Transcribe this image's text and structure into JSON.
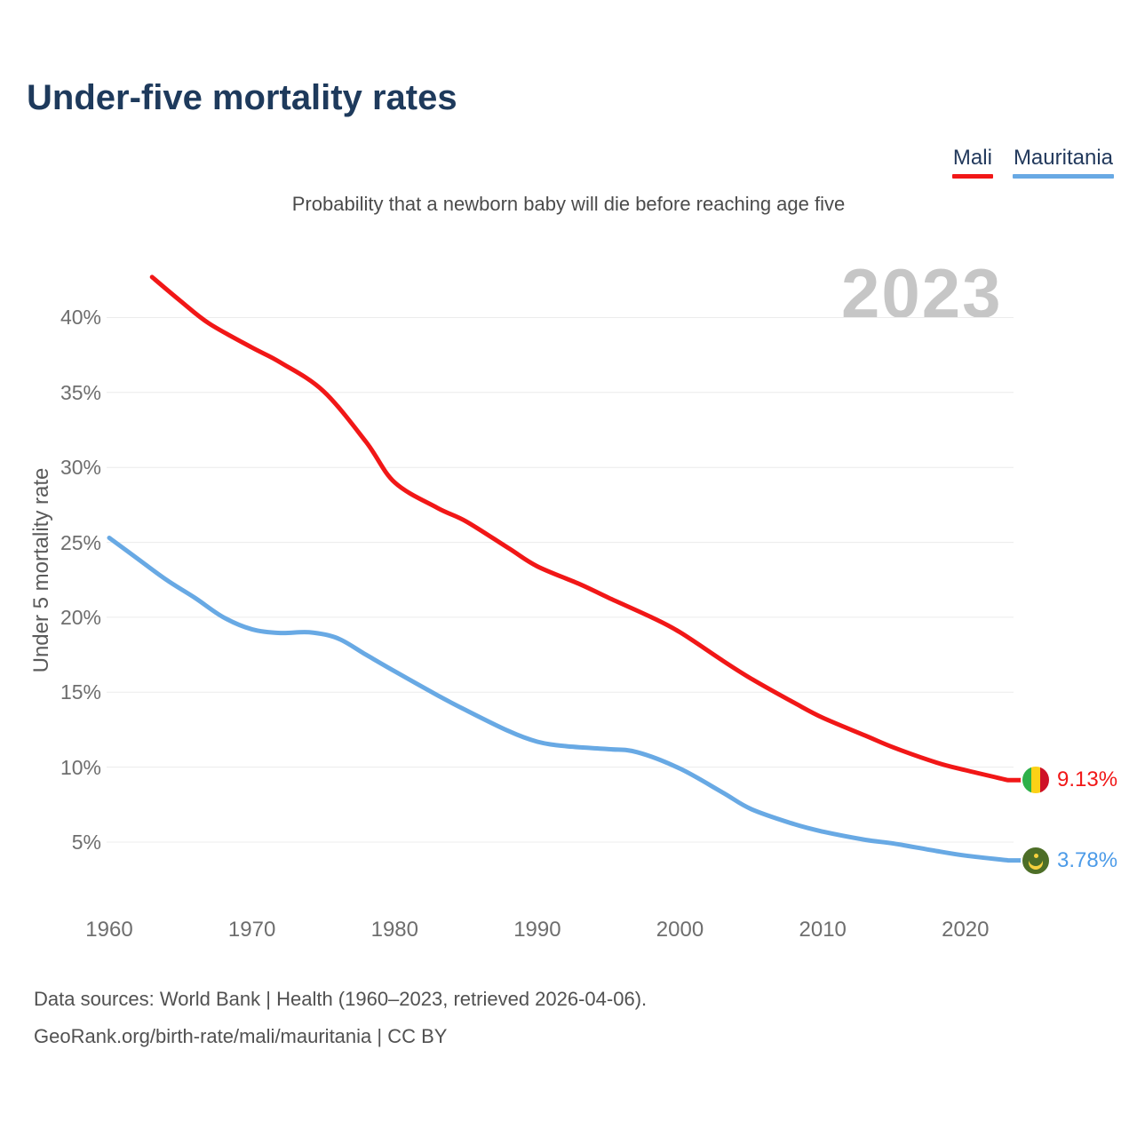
{
  "page": {
    "title": "Under-five mortality rates",
    "subtitle": "Probability that a newborn baby will die before reaching age five",
    "watermark": "2023",
    "footer_line1": "Data sources: World Bank | Health (1960–2023, retrieved 2026-04-06).",
    "footer_line2": "GeoRank.org/birth-rate/mali/mauritania | CC BY"
  },
  "legend": {
    "items": [
      {
        "label": "Mali",
        "color": "#f11717"
      },
      {
        "label": "Mauritania",
        "color": "#68a9e4"
      }
    ]
  },
  "chart_data": {
    "type": "line",
    "title": "Under-five mortality rates",
    "subtitle": "Probability that a newborn baby will die before reaching age five",
    "ylabel": "Under 5 mortality rate",
    "xlabel": "",
    "x_ticks": [
      1960,
      1970,
      1980,
      1990,
      2000,
      2010,
      2020
    ],
    "y_ticks": [
      5,
      10,
      15,
      20,
      25,
      30,
      35,
      40
    ],
    "y_tick_suffix": "%",
    "xlim": [
      1960,
      2023
    ],
    "ylim": [
      5,
      40
    ],
    "grid": true,
    "legend_position": "top-right",
    "watermark_year": "2023",
    "series": [
      {
        "name": "Mali",
        "color": "#f11717",
        "label_color": "#f11717",
        "flag": "mali",
        "flag_icon": "mali-flag-icon",
        "end_label": "9.13%",
        "end_value": 9.13,
        "x": [
          1963,
          1965,
          1967,
          1970,
          1972,
          1975,
          1978,
          1980,
          1983,
          1985,
          1988,
          1990,
          1993,
          1995,
          1998,
          2000,
          2003,
          2005,
          2008,
          2010,
          2013,
          2015,
          2018,
          2020,
          2023
        ],
        "y": [
          42.7,
          41.1,
          39.6,
          38.0,
          37.0,
          35.1,
          31.7,
          29.0,
          27.3,
          26.4,
          24.6,
          23.4,
          22.2,
          21.3,
          20.0,
          19.0,
          17.1,
          15.9,
          14.3,
          13.3,
          12.1,
          11.3,
          10.3,
          9.8,
          9.13
        ]
      },
      {
        "name": "Mauritania",
        "color": "#68a9e4",
        "label_color": "#4c9be8",
        "flag": "mauritania",
        "flag_icon": "mauritania-flag-icon",
        "end_label": "3.78%",
        "end_value": 3.78,
        "x": [
          1960,
          1962,
          1964,
          1966,
          1968,
          1970,
          1972,
          1974,
          1976,
          1978,
          1980,
          1983,
          1985,
          1988,
          1990,
          1992,
          1995,
          1997,
          2000,
          2003,
          2005,
          2008,
          2010,
          2013,
          2015,
          2018,
          2020,
          2023
        ],
        "y": [
          25.3,
          23.9,
          22.5,
          21.3,
          20.0,
          19.2,
          18.95,
          19.0,
          18.6,
          17.5,
          16.4,
          14.8,
          13.8,
          12.4,
          11.7,
          11.4,
          11.2,
          11.0,
          9.9,
          8.3,
          7.2,
          6.2,
          5.7,
          5.15,
          4.9,
          4.4,
          4.1,
          3.78
        ]
      }
    ]
  }
}
